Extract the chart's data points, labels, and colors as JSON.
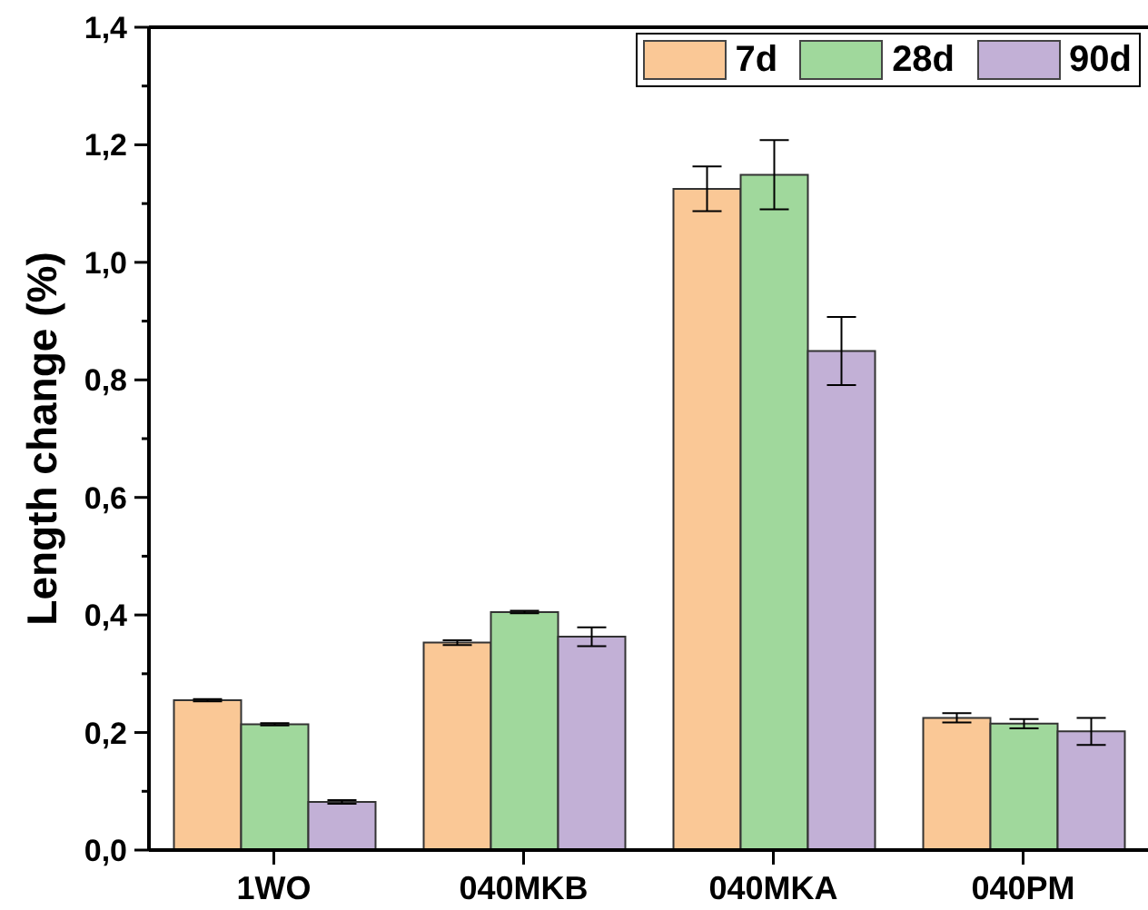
{
  "chart_data": {
    "type": "bar",
    "ylabel": "Length change (%)",
    "categories": [
      "1WO",
      "040MKB",
      "040MKA",
      "040PM"
    ],
    "series": [
      {
        "name": "7d",
        "color": "#fac896",
        "values": [
          0.255,
          0.353,
          1.125,
          0.225
        ],
        "errors": [
          0.002,
          0.004,
          0.038,
          0.008
        ]
      },
      {
        "name": "28d",
        "color": "#a0d89c",
        "values": [
          0.214,
          0.405,
          1.149,
          0.215
        ],
        "errors": [
          0.002,
          0.002,
          0.059,
          0.008
        ]
      },
      {
        "name": "90d",
        "color": "#c2b0d6",
        "values": [
          0.082,
          0.363,
          0.849,
          0.202
        ],
        "errors": [
          0.003,
          0.016,
          0.058,
          0.023
        ]
      }
    ],
    "ylim": [
      0,
      1.4
    ],
    "yticks": [
      {
        "value": 0,
        "label": "0,0"
      },
      {
        "value": 0.1,
        "label": null
      },
      {
        "value": 0.2,
        "label": "0,2"
      },
      {
        "value": 0.3,
        "label": null
      },
      {
        "value": 0.4,
        "label": "0,4"
      },
      {
        "value": 0.5,
        "label": null
      },
      {
        "value": 0.6,
        "label": "0,6"
      },
      {
        "value": 0.7,
        "label": null
      },
      {
        "value": 0.8,
        "label": "0,8"
      },
      {
        "value": 0.9,
        "label": null
      },
      {
        "value": 1.0,
        "label": "1,0"
      },
      {
        "value": 1.1,
        "label": null
      },
      {
        "value": 1.2,
        "label": "1,2"
      },
      {
        "value": 1.3,
        "label": null
      },
      {
        "value": 1.4,
        "label": "1,4"
      }
    ],
    "legend": "top right"
  }
}
